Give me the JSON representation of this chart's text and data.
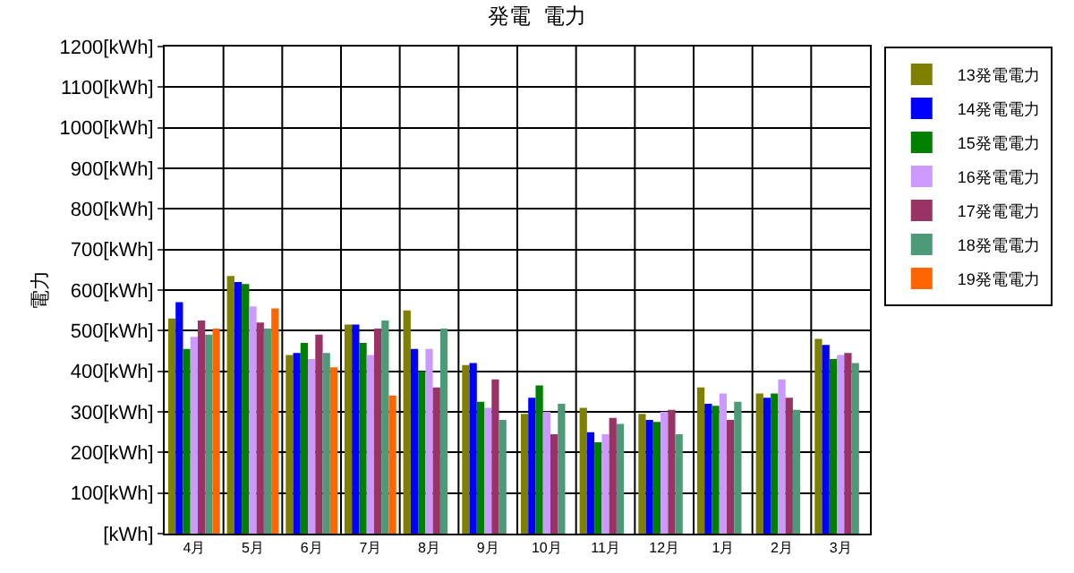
{
  "chart_data": {
    "type": "bar",
    "title": "発電  電力",
    "ylabel": "電力",
    "categories": [
      "4月",
      "5月",
      "6月",
      "7月",
      "8月",
      "9月",
      "10月",
      "11月",
      "12月",
      "1月",
      "2月",
      "3月"
    ],
    "series": [
      {
        "name": "13発電電力",
        "color": "#808000",
        "values": [
          530,
          635,
          440,
          515,
          550,
          415,
          295,
          310,
          295,
          360,
          345,
          480
        ]
      },
      {
        "name": "14発電電力",
        "color": "#0000ff",
        "values": [
          570,
          620,
          445,
          515,
          455,
          420,
          335,
          250,
          280,
          320,
          335,
          465
        ]
      },
      {
        "name": "15発電電力",
        "color": "#008000",
        "values": [
          455,
          615,
          470,
          470,
          400,
          325,
          365,
          225,
          275,
          315,
          345,
          430
        ]
      },
      {
        "name": "16発電電力",
        "color": "#cc99ff",
        "values": [
          485,
          560,
          430,
          440,
          455,
          310,
          300,
          245,
          300,
          345,
          380,
          440
        ]
      },
      {
        "name": "17発電電力",
        "color": "#993366",
        "values": [
          525,
          520,
          490,
          505,
          360,
          380,
          245,
          285,
          305,
          280,
          335,
          445
        ]
      },
      {
        "name": "18発電電力",
        "color": "#4c9a78",
        "values": [
          490,
          505,
          445,
          525,
          505,
          280,
          320,
          270,
          245,
          325,
          305,
          420
        ]
      },
      {
        "name": "19発電電力",
        "color": "#ff6600",
        "values": [
          505,
          555,
          410,
          340,
          null,
          null,
          null,
          null,
          null,
          null,
          null,
          null
        ]
      }
    ],
    "ylim": [
      0,
      1200
    ],
    "yticks": [
      {
        "value": 0,
        "label": "[kWh]"
      },
      {
        "value": 100,
        "label": "100[kWh]"
      },
      {
        "value": 200,
        "label": "200[kWh]"
      },
      {
        "value": 300,
        "label": "300[kWh]"
      },
      {
        "value": 400,
        "label": "400[kWh]"
      },
      {
        "value": 500,
        "label": "500[kWh]"
      },
      {
        "value": 600,
        "label": "600[kWh]"
      },
      {
        "value": 700,
        "label": "700[kWh]"
      },
      {
        "value": 800,
        "label": "800[kWh]"
      },
      {
        "value": 900,
        "label": "900[kWh]"
      },
      {
        "value": 1000,
        "label": "1000[kWh]"
      },
      {
        "value": 1100,
        "label": "1100[kWh]"
      },
      {
        "value": 1200,
        "label": "1200[kWh]"
      }
    ],
    "grid": true,
    "legend": "right"
  }
}
